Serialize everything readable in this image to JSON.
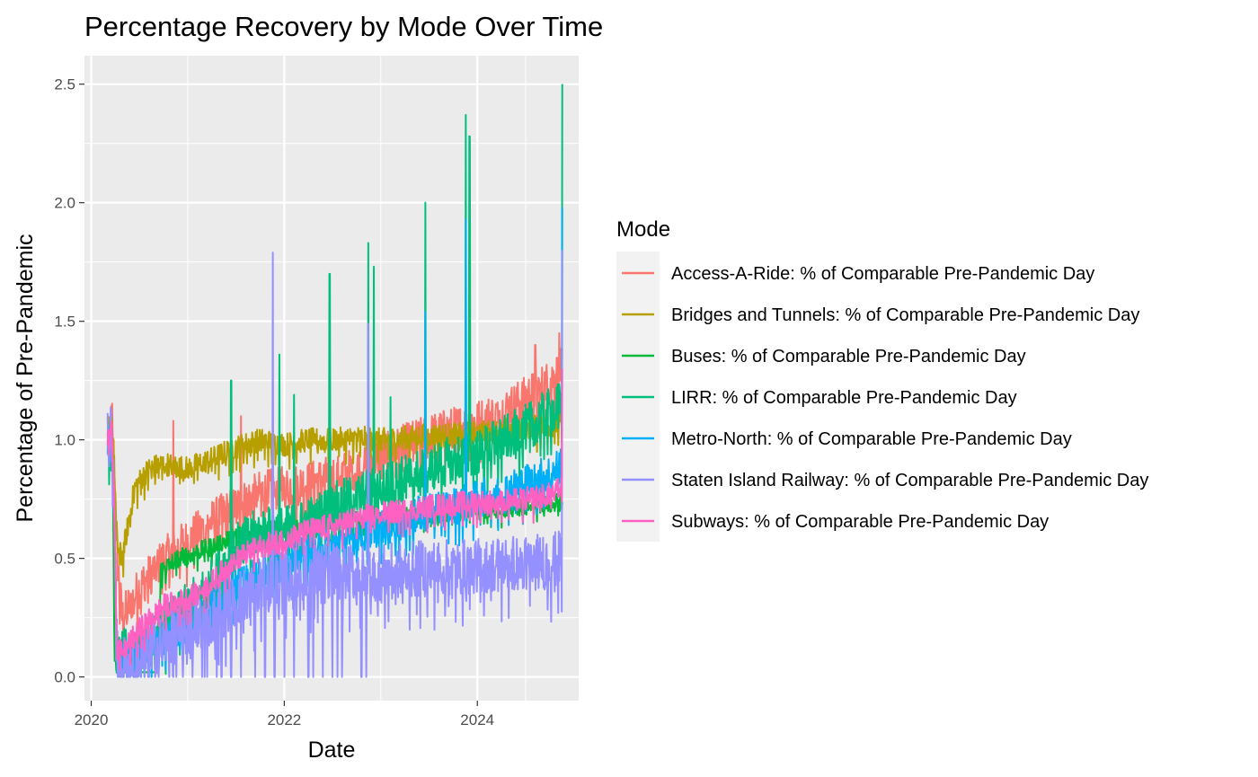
{
  "chart_data": {
    "type": "line",
    "title": "Percentage Recovery by Mode Over Time",
    "xlabel": "Date",
    "ylabel": "Percentage of Pre-Pandemic",
    "xlim": [
      2019.93,
      2025.05
    ],
    "ylim": [
      -0.1,
      2.62
    ],
    "x_ticks": [
      2020,
      2022,
      2024
    ],
    "x_tick_labels": [
      "2020",
      "2022",
      "2024"
    ],
    "y_ticks": [
      0.0,
      0.5,
      1.0,
      1.5,
      2.0,
      2.5
    ],
    "y_tick_labels": [
      "0.0",
      "0.5",
      "1.0",
      "1.5",
      "2.0",
      "2.5"
    ],
    "x_range": [
      2020.17,
      2024.88
    ],
    "grid": true,
    "legend": {
      "title": "Mode",
      "position": "right"
    },
    "series": [
      {
        "name": "Access-A-Ride: % of Comparable Pre-Pandemic Day",
        "color": "#F8766D",
        "points": [
          [
            2020.17,
            1.0
          ],
          [
            2020.22,
            1.1
          ],
          [
            2020.27,
            0.5
          ],
          [
            2020.32,
            0.25
          ],
          [
            2020.5,
            0.38
          ],
          [
            2020.75,
            0.5
          ],
          [
            2021.0,
            0.58
          ],
          [
            2021.25,
            0.66
          ],
          [
            2021.5,
            0.72
          ],
          [
            2021.75,
            0.78
          ],
          [
            2022.0,
            0.8
          ],
          [
            2022.25,
            0.82
          ],
          [
            2022.5,
            0.85
          ],
          [
            2022.75,
            0.88
          ],
          [
            2023.0,
            0.93
          ],
          [
            2023.25,
            0.98
          ],
          [
            2023.5,
            1.02
          ],
          [
            2023.75,
            1.05
          ],
          [
            2024.0,
            1.08
          ],
          [
            2024.25,
            1.12
          ],
          [
            2024.5,
            1.18
          ],
          [
            2024.75,
            1.25
          ],
          [
            2024.88,
            1.3
          ]
        ],
        "noise": 0.09,
        "spikes": [
          [
            2020.85,
            1.08
          ],
          [
            2021.55,
            1.1
          ],
          [
            2024.6,
            1.4
          ],
          [
            2024.85,
            1.45
          ]
        ]
      },
      {
        "name": "Bridges and Tunnels: % of Comparable Pre-Pandemic Day",
        "color": "#B79F00",
        "points": [
          [
            2020.17,
            1.05
          ],
          [
            2020.22,
            1.08
          ],
          [
            2020.27,
            0.55
          ],
          [
            2020.32,
            0.5
          ],
          [
            2020.45,
            0.8
          ],
          [
            2020.6,
            0.88
          ],
          [
            2020.75,
            0.9
          ],
          [
            2021.0,
            0.88
          ],
          [
            2021.25,
            0.92
          ],
          [
            2021.5,
            0.97
          ],
          [
            2021.75,
            1.0
          ],
          [
            2022.0,
            0.98
          ],
          [
            2022.25,
            1.0
          ],
          [
            2022.5,
            1.0
          ],
          [
            2022.75,
            1.01
          ],
          [
            2023.0,
            1.0
          ],
          [
            2023.25,
            1.01
          ],
          [
            2023.5,
            1.02
          ],
          [
            2023.75,
            1.02
          ],
          [
            2024.0,
            1.03
          ],
          [
            2024.25,
            1.04
          ],
          [
            2024.5,
            1.05
          ],
          [
            2024.75,
            1.06
          ],
          [
            2024.88,
            1.07
          ]
        ],
        "noise": 0.05,
        "spikes": []
      },
      {
        "name": "Buses: % of Comparable Pre-Pandemic Day",
        "color": "#00BA38",
        "points": [
          [
            2020.17,
            1.05
          ],
          [
            2020.22,
            1.0
          ],
          [
            2020.24,
            0.1
          ],
          [
            2020.27,
            0.02
          ],
          [
            2020.7,
            0.02
          ],
          [
            2020.72,
            0.45
          ],
          [
            2020.9,
            0.5
          ],
          [
            2021.25,
            0.55
          ],
          [
            2021.5,
            0.6
          ],
          [
            2021.75,
            0.62
          ],
          [
            2022.0,
            0.62
          ],
          [
            2022.25,
            0.63
          ],
          [
            2022.5,
            0.65
          ],
          [
            2022.75,
            0.66
          ],
          [
            2023.0,
            0.67
          ],
          [
            2023.25,
            0.68
          ],
          [
            2023.5,
            0.68
          ],
          [
            2023.75,
            0.69
          ],
          [
            2024.0,
            0.7
          ],
          [
            2024.25,
            0.71
          ],
          [
            2024.5,
            0.72
          ],
          [
            2024.75,
            0.73
          ],
          [
            2024.88,
            0.74
          ]
        ],
        "noise": 0.04,
        "spikes": [],
        "quiet_ranges": [
          [
            2020.27,
            2020.7
          ]
        ]
      },
      {
        "name": "LIRR: % of Comparable Pre-Pandemic Day",
        "color": "#00BF7D",
        "points": [
          [
            2020.17,
            1.0
          ],
          [
            2020.22,
            0.95
          ],
          [
            2020.27,
            0.1
          ],
          [
            2020.5,
            0.12
          ],
          [
            2020.75,
            0.2
          ],
          [
            2021.0,
            0.3
          ],
          [
            2021.25,
            0.4
          ],
          [
            2021.5,
            0.55
          ],
          [
            2021.75,
            0.62
          ],
          [
            2022.0,
            0.62
          ],
          [
            2022.25,
            0.66
          ],
          [
            2022.5,
            0.72
          ],
          [
            2022.75,
            0.76
          ],
          [
            2023.0,
            0.8
          ],
          [
            2023.25,
            0.84
          ],
          [
            2023.5,
            0.88
          ],
          [
            2023.75,
            0.92
          ],
          [
            2024.0,
            0.95
          ],
          [
            2024.25,
            1.0
          ],
          [
            2024.5,
            1.05
          ],
          [
            2024.75,
            1.12
          ],
          [
            2024.88,
            1.15
          ]
        ],
        "noise": 0.1,
        "spikes": [
          [
            2021.45,
            1.25
          ],
          [
            2021.95,
            1.36
          ],
          [
            2022.1,
            1.19
          ],
          [
            2022.47,
            1.7
          ],
          [
            2022.87,
            1.83
          ],
          [
            2022.93,
            1.73
          ],
          [
            2023.1,
            1.18
          ],
          [
            2023.46,
            2.0
          ],
          [
            2023.88,
            2.37
          ],
          [
            2023.92,
            2.28
          ],
          [
            2024.88,
            2.5
          ]
        ]
      },
      {
        "name": "Metro-North: % of Comparable Pre-Pandemic Day",
        "color": "#00B0F6",
        "points": [
          [
            2020.17,
            1.0
          ],
          [
            2020.22,
            0.95
          ],
          [
            2020.27,
            0.08
          ],
          [
            2020.5,
            0.1
          ],
          [
            2020.75,
            0.15
          ],
          [
            2021.0,
            0.22
          ],
          [
            2021.25,
            0.3
          ],
          [
            2021.5,
            0.4
          ],
          [
            2021.75,
            0.45
          ],
          [
            2022.0,
            0.48
          ],
          [
            2022.25,
            0.52
          ],
          [
            2022.5,
            0.56
          ],
          [
            2022.75,
            0.6
          ],
          [
            2023.0,
            0.63
          ],
          [
            2023.25,
            0.66
          ],
          [
            2023.5,
            0.7
          ],
          [
            2023.75,
            0.72
          ],
          [
            2024.0,
            0.75
          ],
          [
            2024.25,
            0.78
          ],
          [
            2024.5,
            0.82
          ],
          [
            2024.75,
            0.86
          ],
          [
            2024.88,
            0.9
          ]
        ],
        "noise": 0.08,
        "spikes": [
          [
            2022.87,
            1.48
          ],
          [
            2023.46,
            1.54
          ],
          [
            2023.88,
            1.93
          ],
          [
            2024.88,
            1.98
          ]
        ]
      },
      {
        "name": "Staten Island Railway: % of Comparable Pre-Pandemic Day",
        "color": "#9590FF",
        "points": [
          [
            2020.17,
            1.05
          ],
          [
            2020.22,
            1.0
          ],
          [
            2020.27,
            0.05
          ],
          [
            2020.5,
            0.08
          ],
          [
            2020.75,
            0.15
          ],
          [
            2021.0,
            0.2
          ],
          [
            2021.25,
            0.25
          ],
          [
            2021.5,
            0.33
          ],
          [
            2021.75,
            0.38
          ],
          [
            2022.0,
            0.42
          ],
          [
            2022.25,
            0.44
          ],
          [
            2022.5,
            0.45
          ],
          [
            2022.75,
            0.44
          ],
          [
            2023.0,
            0.44
          ],
          [
            2023.25,
            0.45
          ],
          [
            2023.5,
            0.46
          ],
          [
            2023.75,
            0.46
          ],
          [
            2024.0,
            0.47
          ],
          [
            2024.25,
            0.48
          ],
          [
            2024.5,
            0.48
          ],
          [
            2024.75,
            0.49
          ],
          [
            2024.88,
            0.5
          ]
        ],
        "noise": 0.12,
        "spikes": [
          [
            2021.45,
            1.2
          ],
          [
            2021.88,
            1.79
          ],
          [
            2022.87,
            1.49
          ],
          [
            2024.88,
            1.8
          ]
        ],
        "zero_dips": [
          2020.45,
          2020.6,
          2020.85,
          2020.95,
          2021.05,
          2021.15,
          2021.2,
          2021.3,
          2021.35,
          2021.45,
          2021.55,
          2021.7,
          2021.8,
          2021.9,
          2022.0,
          2022.1,
          2022.25,
          2022.3,
          2022.4,
          2022.5,
          2022.55,
          2022.6,
          2022.8,
          2022.85
        ]
      },
      {
        "name": "Subways: % of Comparable Pre-Pandemic Day",
        "color": "#FF61C3",
        "points": [
          [
            2020.17,
            1.0
          ],
          [
            2020.22,
            1.05
          ],
          [
            2020.27,
            0.1
          ],
          [
            2020.35,
            0.12
          ],
          [
            2020.5,
            0.2
          ],
          [
            2020.75,
            0.3
          ],
          [
            2021.0,
            0.33
          ],
          [
            2021.25,
            0.4
          ],
          [
            2021.5,
            0.5
          ],
          [
            2021.75,
            0.55
          ],
          [
            2022.0,
            0.58
          ],
          [
            2022.25,
            0.62
          ],
          [
            2022.5,
            0.64
          ],
          [
            2022.75,
            0.67
          ],
          [
            2023.0,
            0.69
          ],
          [
            2023.25,
            0.7
          ],
          [
            2023.5,
            0.72
          ],
          [
            2023.75,
            0.73
          ],
          [
            2024.0,
            0.74
          ],
          [
            2024.25,
            0.74
          ],
          [
            2024.5,
            0.75
          ],
          [
            2024.75,
            0.77
          ],
          [
            2024.88,
            0.8
          ]
        ],
        "noise": 0.05,
        "spikes": [
          [
            2024.88,
            1.3
          ]
        ]
      }
    ]
  }
}
